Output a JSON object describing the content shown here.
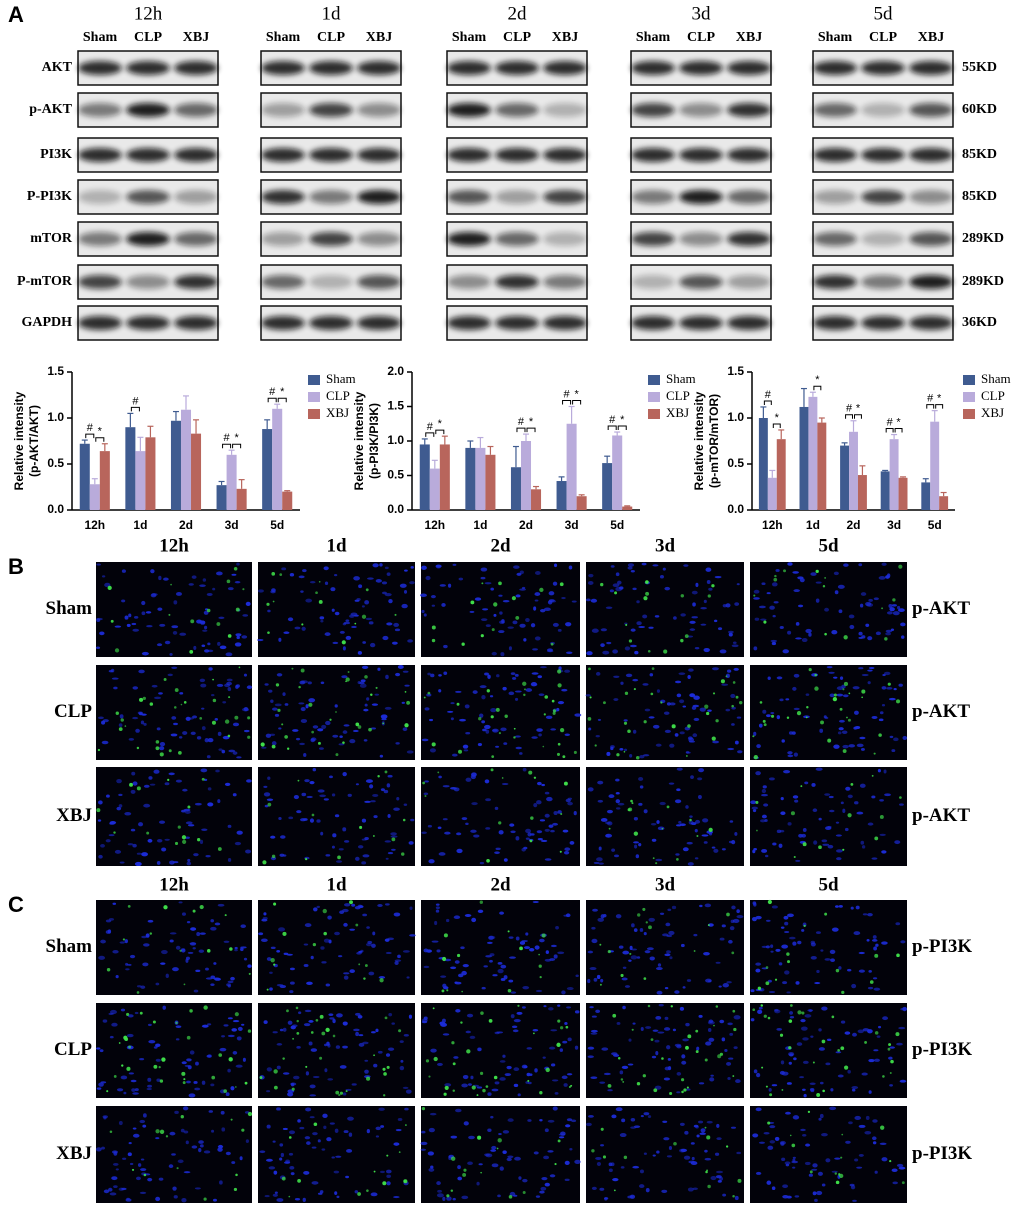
{
  "panel_labels": [
    "A",
    "B",
    "C"
  ],
  "western_blot": {
    "timepoints": [
      "12h",
      "1d",
      "2d",
      "3d",
      "5d"
    ],
    "groups": [
      "Sham",
      "CLP",
      "XBJ"
    ],
    "proteins": [
      "AKT",
      "p-AKT",
      "PI3K",
      "P-PI3K",
      "mTOR",
      "P-mTOR",
      "GAPDH"
    ],
    "weights": [
      "55KD",
      "60KD",
      "85KD",
      "85KD",
      "289KD",
      "289KD",
      "36KD"
    ]
  },
  "chart_data": [
    {
      "type": "bar",
      "ylabel": [
        "Relative intensity",
        "(p-AKT/AKT)"
      ],
      "categories": [
        "12h",
        "1d",
        "2d",
        "3d",
        "5d"
      ],
      "series": [
        {
          "name": "Sham",
          "color": "#3f5b90",
          "values": [
            0.72,
            0.9,
            0.97,
            0.27,
            0.88
          ],
          "errors": [
            0.04,
            0.15,
            0.1,
            0.04,
            0.1
          ]
        },
        {
          "name": "CLP",
          "color": "#b9abdb",
          "values": [
            0.28,
            0.64,
            1.09,
            0.6,
            1.1
          ],
          "errors": [
            0.06,
            0.15,
            0.15,
            0.05,
            0.05
          ]
        },
        {
          "name": "XBJ",
          "color": "#b8655c",
          "values": [
            0.64,
            0.79,
            0.83,
            0.23,
            0.2
          ],
          "errors": [
            0.08,
            0.12,
            0.15,
            0.1,
            0.01
          ]
        }
      ],
      "ylim": [
        0,
        1.5
      ],
      "yticks": [
        {
          "value": 0,
          "label": "0.0"
        },
        {
          "value": 0.5,
          "label": "0.5"
        },
        {
          "value": 1,
          "label": "1.0"
        },
        {
          "value": 1.5,
          "label": "1.5"
        }
      ],
      "legend": "upper right",
      "annotations": [
        {
          "text": "#",
          "category": "12h",
          "from": "Sham",
          "to": "CLP"
        },
        {
          "text": "*",
          "category": "12h",
          "from": "CLP",
          "to": "XBJ"
        },
        {
          "text": "#",
          "category": "1d",
          "from": "Sham",
          "to": "CLP"
        },
        {
          "text": "#",
          "category": "3d",
          "from": "Sham",
          "to": "CLP"
        },
        {
          "text": "*",
          "category": "3d",
          "from": "CLP",
          "to": "XBJ"
        },
        {
          "text": "#",
          "category": "5d",
          "from": "Sham",
          "to": "CLP"
        },
        {
          "text": "*",
          "category": "5d",
          "from": "CLP",
          "to": "XBJ"
        }
      ]
    },
    {
      "type": "bar",
      "ylabel": [
        "Relative intensity",
        "(p-PI3K/PI3K)"
      ],
      "categories": [
        "12h",
        "1d",
        "2d",
        "3d",
        "5d"
      ],
      "series": [
        {
          "name": "Sham",
          "color": "#3f5b90",
          "values": [
            0.95,
            0.9,
            0.62,
            0.42,
            0.68
          ],
          "errors": [
            0.08,
            0.1,
            0.3,
            0.06,
            0.1
          ]
        },
        {
          "name": "CLP",
          "color": "#b9abdb",
          "values": [
            0.6,
            0.9,
            1.0,
            1.25,
            1.08
          ],
          "errors": [
            0.12,
            0.15,
            0.1,
            0.25,
            0.05
          ]
        },
        {
          "name": "XBJ",
          "color": "#b8655c",
          "values": [
            0.95,
            0.8,
            0.3,
            0.2,
            0.05
          ],
          "errors": [
            0.12,
            0.12,
            0.04,
            0.02,
            0.01
          ]
        }
      ],
      "ylim": [
        0,
        2
      ],
      "yticks": [
        {
          "value": 0,
          "label": "0.0"
        },
        {
          "value": 0.5,
          "label": "0.5"
        },
        {
          "value": 1,
          "label": "1.0"
        },
        {
          "value": 1.5,
          "label": "1.5"
        },
        {
          "value": 2,
          "label": "2.0"
        }
      ],
      "legend": "upper right",
      "annotations": [
        {
          "text": "#",
          "category": "12h",
          "from": "Sham",
          "to": "CLP"
        },
        {
          "text": "*",
          "category": "12h",
          "from": "CLP",
          "to": "XBJ"
        },
        {
          "text": "#",
          "category": "2d",
          "from": "Sham",
          "to": "CLP"
        },
        {
          "text": "*",
          "category": "2d",
          "from": "CLP",
          "to": "XBJ"
        },
        {
          "text": "#",
          "category": "3d",
          "from": "Sham",
          "to": "CLP"
        },
        {
          "text": "*",
          "category": "3d",
          "from": "CLP",
          "to": "XBJ"
        },
        {
          "text": "#",
          "category": "5d",
          "from": "Sham",
          "to": "CLP"
        },
        {
          "text": "*",
          "category": "5d",
          "from": "CLP",
          "to": "XBJ"
        }
      ]
    },
    {
      "type": "bar",
      "ylabel": [
        "Relative intensity",
        "(p-mTOR/mTOR)"
      ],
      "categories": [
        "12h",
        "1d",
        "2d",
        "3d",
        "5d"
      ],
      "series": [
        {
          "name": "Sham",
          "color": "#3f5b90",
          "values": [
            1.0,
            1.12,
            0.7,
            0.42,
            0.3
          ],
          "errors": [
            0.12,
            0.2,
            0.03,
            0.01,
            0.04
          ]
        },
        {
          "name": "CLP",
          "color": "#b9abdb",
          "values": [
            0.35,
            1.23,
            0.85,
            0.77,
            0.96
          ],
          "errors": [
            0.08,
            0.05,
            0.12,
            0.05,
            0.12
          ]
        },
        {
          "name": "XBJ",
          "color": "#b8655c",
          "values": [
            0.77,
            0.95,
            0.38,
            0.35,
            0.15
          ],
          "errors": [
            0.1,
            0.05,
            0.1,
            0.01,
            0.04
          ]
        }
      ],
      "ylim": [
        0,
        1.5
      ],
      "yticks": [
        {
          "value": 0,
          "label": "0.0"
        },
        {
          "value": 0.5,
          "label": "0.5"
        },
        {
          "value": 1,
          "label": "1.0"
        },
        {
          "value": 1.5,
          "label": "1.5"
        }
      ],
      "legend": "upper right",
      "annotations": [
        {
          "text": "#",
          "category": "12h",
          "from": "Sham",
          "to": "CLP"
        },
        {
          "text": "*",
          "category": "12h",
          "from": "CLP",
          "to": "XBJ"
        },
        {
          "text": "*",
          "category": "1d",
          "from": "CLP",
          "to": "XBJ"
        },
        {
          "text": "#",
          "category": "2d",
          "from": "Sham",
          "to": "CLP"
        },
        {
          "text": "*",
          "category": "2d",
          "from": "CLP",
          "to": "XBJ"
        },
        {
          "text": "#",
          "category": "3d",
          "from": "Sham",
          "to": "CLP"
        },
        {
          "text": "*",
          "category": "3d",
          "from": "CLP",
          "to": "XBJ"
        },
        {
          "text": "#",
          "category": "5d",
          "from": "Sham",
          "to": "CLP"
        },
        {
          "text": "*",
          "category": "5d",
          "from": "CLP",
          "to": "XBJ"
        }
      ]
    }
  ],
  "immunofluorescence_b": {
    "timepoints": [
      "12h",
      "1d",
      "2d",
      "3d",
      "5d"
    ],
    "groups": [
      "Sham",
      "CLP",
      "XBJ"
    ],
    "marker": "p-AKT"
  },
  "immunofluorescence_c": {
    "timepoints": [
      "12h",
      "1d",
      "2d",
      "3d",
      "5d"
    ],
    "groups": [
      "Sham",
      "CLP",
      "XBJ"
    ],
    "marker": "p-PI3K"
  }
}
